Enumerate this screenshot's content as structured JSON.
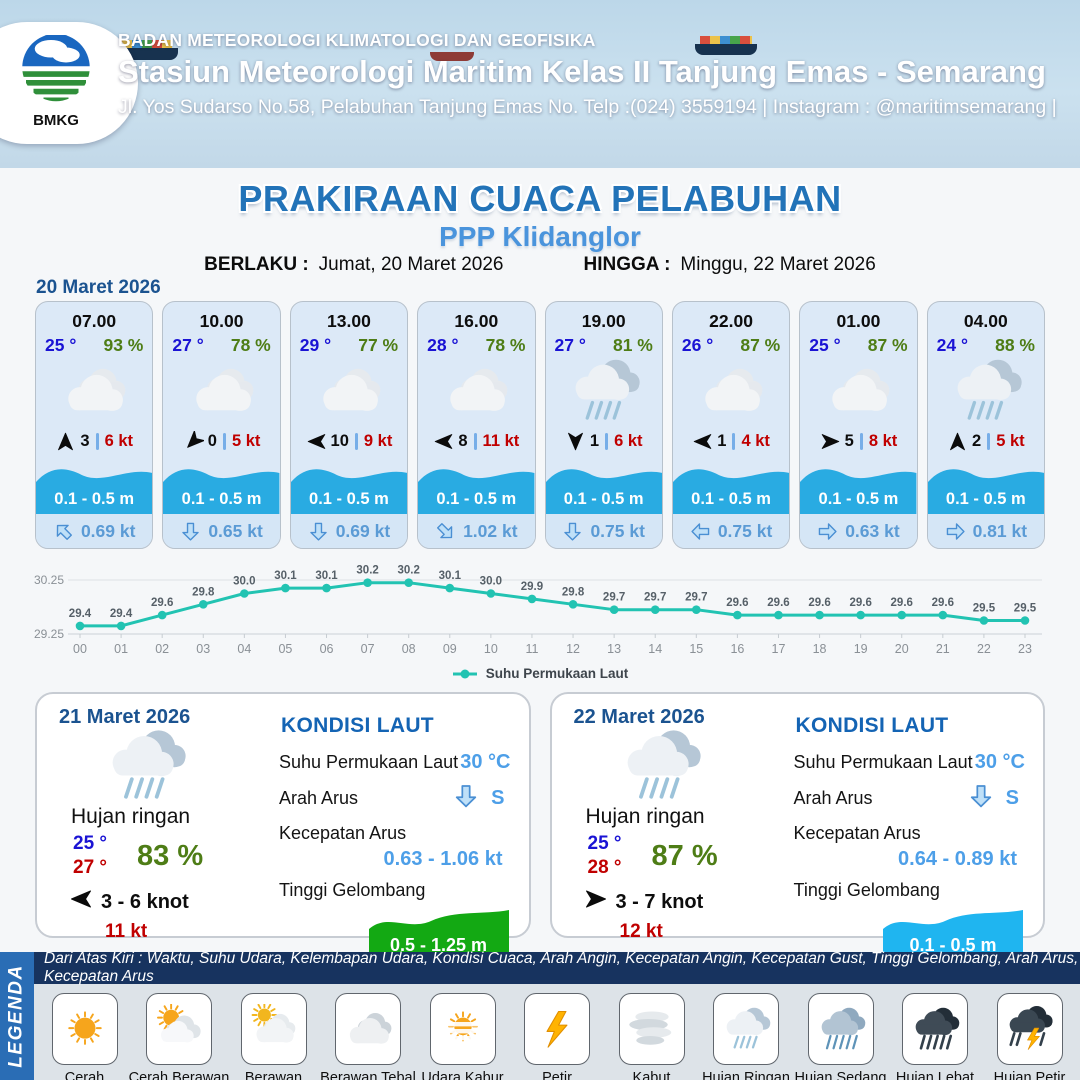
{
  "colors": {
    "accent_blue": "#2273b8",
    "subtitle_blue": "#4a94dc",
    "temp_blue": "#1a13d4",
    "humidity_green": "#4e7d16",
    "gust_red": "#c00000",
    "wave_band_blue": "#29abe2",
    "current_text_blue": "#5b9bd5",
    "sea_value_blue": "#4d9fe8",
    "chart_teal": "#22c3b2",
    "wave_green": "#13a913",
    "legend_bar_blue": "#2a6db5",
    "legend_note_navy": "#17335f",
    "date_blue": "#1b5390"
  },
  "header": {
    "logo_text": "BMKG",
    "agency": "BADAN METEOROLOGI KLIMATOLOGI DAN GEOFISIKA",
    "station": "Stasiun Meteorologi Maritim Kelas II Tanjung Emas - Semarang",
    "address": "Jl. Yos Sudarso No.58, Pelabuhan Tanjung Emas No. Telp :(024) 3559194 | Instagram : @maritimsemarang |"
  },
  "title": {
    "main": "PRAKIRAAN CUACA PELABUHAN",
    "subtitle": "PPP Klidanglor",
    "berlaku_label": "BERLAKU :",
    "berlaku_value": "Jumat, 20 Maret 2026",
    "hingga_label": "HINGGA :",
    "hingga_value": "Minggu, 22 Maret 2026"
  },
  "forecast": {
    "date_label": "20 Maret 2026",
    "cards": [
      {
        "time": "07.00",
        "temp": "25 °",
        "humidity": "93 %",
        "weather": "berawan",
        "wind_deg": 0,
        "wind_speed": "3",
        "gust": "6 kt",
        "wave": "0.1 - 0.5 m",
        "current_deg": 315,
        "current_speed": "0.69 kt"
      },
      {
        "time": "10.00",
        "temp": "27 °",
        "humidity": "78 %",
        "weather": "berawan",
        "wind_deg": 225,
        "wind_speed": "0",
        "gust": "5 kt",
        "wave": "0.1 - 0.5 m",
        "current_deg": 180,
        "current_speed": "0.65 kt"
      },
      {
        "time": "13.00",
        "temp": "29 °",
        "humidity": "77 %",
        "weather": "berawan",
        "wind_deg": 270,
        "wind_speed": "10",
        "gust": "9 kt",
        "wave": "0.1 - 0.5 m",
        "current_deg": 180,
        "current_speed": "0.69 kt"
      },
      {
        "time": "16.00",
        "temp": "28 °",
        "humidity": "78 %",
        "weather": "berawan",
        "wind_deg": 270,
        "wind_speed": "8",
        "gust": "11 kt",
        "wave": "0.1 - 0.5 m",
        "current_deg": 135,
        "current_speed": "1.02 kt"
      },
      {
        "time": "19.00",
        "temp": "27 °",
        "humidity": "81 %",
        "weather": "hujan-ringan",
        "wind_deg": 180,
        "wind_speed": "1",
        "gust": "6 kt",
        "wave": "0.1 - 0.5 m",
        "current_deg": 180,
        "current_speed": "0.75 kt"
      },
      {
        "time": "22.00",
        "temp": "26 °",
        "humidity": "87 %",
        "weather": "berawan",
        "wind_deg": 270,
        "wind_speed": "1",
        "gust": "4 kt",
        "wave": "0.1 - 0.5 m",
        "current_deg": 270,
        "current_speed": "0.75 kt"
      },
      {
        "time": "01.00",
        "temp": "25 °",
        "humidity": "87 %",
        "weather": "berawan",
        "wind_deg": 90,
        "wind_speed": "5",
        "gust": "8 kt",
        "wave": "0.1 - 0.5 m",
        "current_deg": 90,
        "current_speed": "0.63 kt"
      },
      {
        "time": "04.00",
        "temp": "24 °",
        "humidity": "88 %",
        "weather": "hujan-ringan",
        "wind_deg": 0,
        "wind_speed": "2",
        "gust": "5 kt",
        "wave": "0.1 - 0.5 m",
        "current_deg": 90,
        "current_speed": "0.81 kt"
      }
    ]
  },
  "chart_data": {
    "type": "line",
    "title": "",
    "x": [
      "00",
      "01",
      "02",
      "03",
      "04",
      "05",
      "06",
      "07",
      "08",
      "09",
      "10",
      "11",
      "12",
      "13",
      "14",
      "15",
      "16",
      "17",
      "18",
      "19",
      "20",
      "21",
      "22",
      "23"
    ],
    "series": [
      {
        "name": "Suhu Permukaan Laut",
        "values": [
          29.4,
          29.4,
          29.6,
          29.8,
          30.0,
          30.1,
          30.1,
          30.2,
          30.2,
          30.1,
          30.0,
          29.9,
          29.8,
          29.7,
          29.7,
          29.7,
          29.6,
          29.6,
          29.6,
          29.6,
          29.6,
          29.6,
          29.5,
          29.5
        ]
      }
    ],
    "ylim": [
      29.25,
      30.25
    ],
    "yticks": [
      "29.25",
      "30.25"
    ],
    "line_color": "#22c3b2",
    "grid": true,
    "legend_position": "bottom"
  },
  "days": [
    {
      "date": "21 Maret 2026",
      "weather": "hujan-ringan",
      "condition": "Hujan ringan",
      "temp_min": "25 °",
      "temp_max": "27 °",
      "humidity": "83 %",
      "wind_deg": 270,
      "wind_range": "3  - 6 knot",
      "gust": "11 kt",
      "sea": {
        "heading": "KONDISI LAUT",
        "sst_label": "Suhu Permukaan Laut",
        "sst": "30 °C",
        "dir_label": "Arah Arus",
        "dir": "S",
        "dir_deg": 180,
        "speed_label": "Kecepatan Arus",
        "speed": "0.63 - 1.06 kt",
        "wave_label": "Tinggi Gelombang",
        "wave": "0.5 - 1.25 m",
        "wave_color": "#13a913"
      }
    },
    {
      "date": "22 Maret 2026",
      "weather": "hujan-ringan",
      "condition": "Hujan ringan",
      "temp_min": "25 °",
      "temp_max": "28 °",
      "humidity": "87 %",
      "wind_deg": 90,
      "wind_range": "3  - 7 knot",
      "gust": "12 kt",
      "sea": {
        "heading": "KONDISI LAUT",
        "sst_label": "Suhu Permukaan Laut",
        "sst": "30 °C",
        "dir_label": "Arah Arus",
        "dir": "S",
        "dir_deg": 180,
        "speed_label": "Kecepatan Arus",
        "speed": "0.64 - 0.89 kt",
        "wave_label": "Tinggi Gelombang",
        "wave": "0.1 - 0.5 m",
        "wave_color": "#1fb5f0"
      }
    }
  ],
  "legend": {
    "title": "LEGENDA",
    "note": "Dari Atas Kiri : Waktu, Suhu Udara, Kelembapan Udara, Kondisi Cuaca, Arah Angin, Kecepatan Angin, Kecepatan Gust, Tinggi Gelombang, Arah Arus, Kecepatan Arus",
    "items": [
      {
        "label": "Cerah",
        "icon": "cerah"
      },
      {
        "label": "Cerah Berawan",
        "icon": "cerah-berawan"
      },
      {
        "label": "Berawan",
        "icon": "berawan"
      },
      {
        "label": "Berawan Tebal",
        "icon": "berawan-tebal"
      },
      {
        "label": "Udara Kabur",
        "icon": "udara-kabur"
      },
      {
        "label": "Petir",
        "icon": "petir"
      },
      {
        "label": "Kabut",
        "icon": "kabut"
      },
      {
        "label": "Hujan Ringan",
        "icon": "hujan-ringan"
      },
      {
        "label": "Hujan Sedang",
        "icon": "hujan-sedang"
      },
      {
        "label": "Hujan Lebat",
        "icon": "hujan-lebat"
      },
      {
        "label": "Hujan Petir",
        "icon": "hujan-petir"
      }
    ]
  }
}
